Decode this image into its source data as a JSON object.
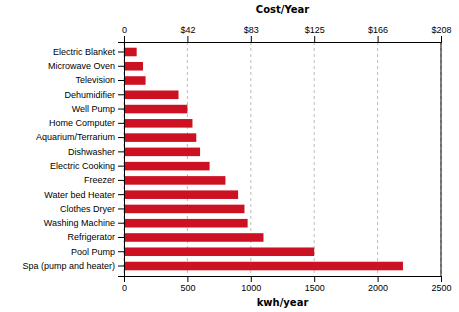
{
  "chart_data": {
    "type": "bar",
    "orientation": "horizontal",
    "categories": [
      "Spa (pump and heater)",
      "Pool Pump",
      "Refrigerator",
      "Washing Machine",
      "Clothes Dryer",
      "Water bed Heater",
      "Freezer",
      "Electric Cooking",
      "Dishwasher",
      "Aquarium/Terrarium",
      "Home Computer",
      "Well Pump",
      "Dehumidifier",
      "Television",
      "Microwave Oven",
      "Electric Blanket"
    ],
    "values": [
      2200,
      1500,
      1100,
      975,
      950,
      900,
      800,
      675,
      600,
      570,
      540,
      500,
      430,
      170,
      150,
      100
    ],
    "color": "#cc1122",
    "xlabel": "kwh/year",
    "xlim": [
      0,
      2500
    ],
    "xticks": [
      0,
      500,
      1000,
      1500,
      2000,
      2500
    ],
    "x2label": "Cost/Year",
    "x2lim": [
      0,
      2500
    ],
    "x2ticks": [
      0,
      {
        "value": 500,
        "label": "$42"
      },
      {
        "value": 1000,
        "label": "$83"
      },
      {
        "value": 1500,
        "label": "$125"
      },
      {
        "value": 2000,
        "label": "$166"
      },
      {
        "value": 2500,
        "label": "$208"
      }
    ],
    "grid": true
  }
}
